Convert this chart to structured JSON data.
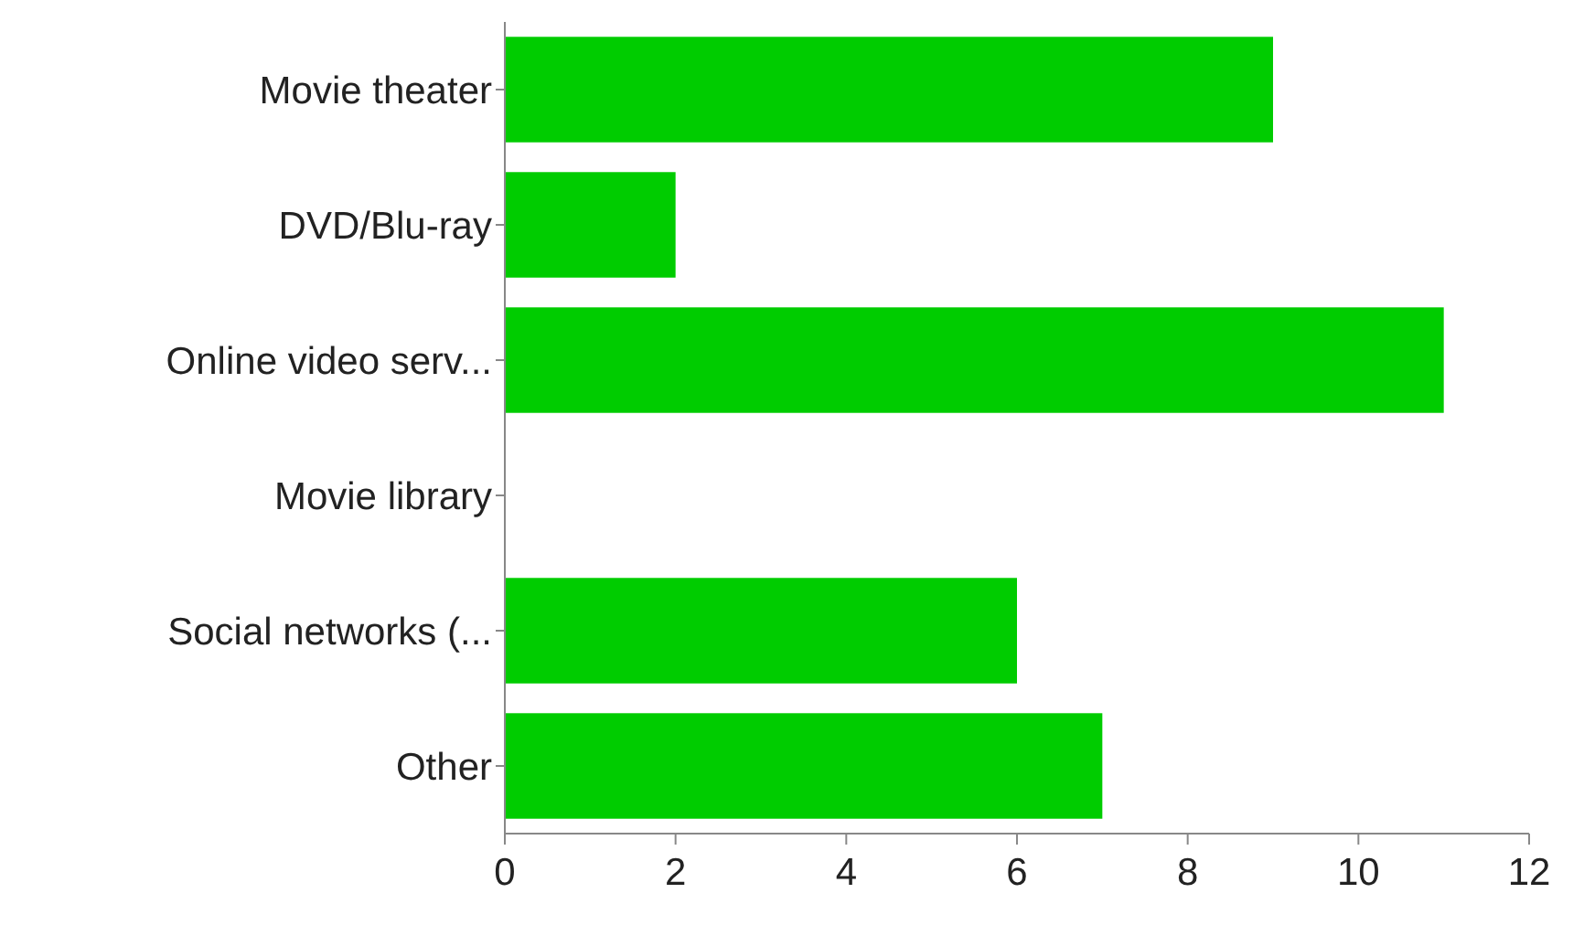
{
  "chart_data": {
    "type": "bar",
    "orientation": "horizontal",
    "categories": [
      "Movie theater",
      "DVD/Blu-ray",
      "Online video serv...",
      "Movie library",
      "Social networks (...",
      "Other"
    ],
    "values": [
      9,
      2,
      11,
      0,
      6,
      7
    ],
    "color": "#00cc00",
    "xlim": [
      0,
      12
    ],
    "xticks": [
      0,
      2,
      4,
      6,
      8,
      10,
      12
    ],
    "grid": false
  }
}
